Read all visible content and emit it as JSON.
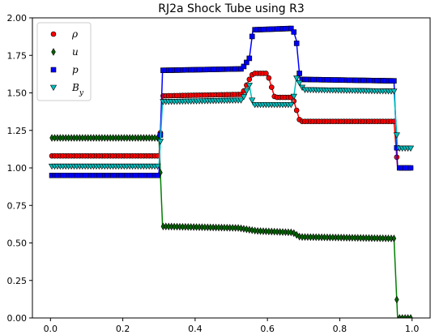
{
  "chart_data": {
    "type": "line",
    "title": "RJ2a Shock Tube using R3",
    "xlabel": "",
    "ylabel": "",
    "xlim": [
      -0.05,
      1.05
    ],
    "ylim": [
      0.0,
      2.0
    ],
    "x_ticks": [
      "0.0",
      "0.2",
      "0.4",
      "0.6",
      "0.8",
      "1.0"
    ],
    "y_ticks": [
      "0.00",
      "0.25",
      "0.50",
      "0.75",
      "1.00",
      "1.25",
      "1.50",
      "1.75",
      "2.00"
    ],
    "grid": false,
    "legend_position": "top-left",
    "series": [
      {
        "name": "ρ",
        "color": "#ff0000",
        "marker": "circle",
        "line_color": "#ff0000",
        "profile": [
          [
            0.0,
            1.08
          ],
          [
            0.3,
            1.08
          ],
          [
            0.31,
            1.48
          ],
          [
            0.53,
            1.49
          ],
          [
            0.55,
            1.59
          ],
          [
            0.56,
            1.63
          ],
          [
            0.6,
            1.63
          ],
          [
            0.62,
            1.47
          ],
          [
            0.67,
            1.47
          ],
          [
            0.69,
            1.31
          ],
          [
            0.95,
            1.31
          ],
          [
            0.96,
            1.0
          ],
          [
            1.0,
            1.0
          ]
        ]
      },
      {
        "name": "u",
        "color": "#006400",
        "marker": "thin_diamond",
        "line_color": "#008000",
        "profile": [
          [
            0.0,
            1.2
          ],
          [
            0.3,
            1.2
          ],
          [
            0.305,
            0.9
          ],
          [
            0.31,
            0.61
          ],
          [
            0.52,
            0.6
          ],
          [
            0.57,
            0.58
          ],
          [
            0.67,
            0.57
          ],
          [
            0.69,
            0.54
          ],
          [
            0.95,
            0.53
          ],
          [
            0.96,
            0.0
          ],
          [
            1.0,
            0.0
          ]
        ]
      },
      {
        "name": "p",
        "color": "#0000ff",
        "marker": "square",
        "line_color": "#0000ff",
        "profile": [
          [
            0.0,
            0.95
          ],
          [
            0.3,
            0.95
          ],
          [
            0.31,
            1.65
          ],
          [
            0.53,
            1.66
          ],
          [
            0.55,
            1.73
          ],
          [
            0.56,
            1.92
          ],
          [
            0.67,
            1.93
          ],
          [
            0.68,
            1.85
          ],
          [
            0.69,
            1.59
          ],
          [
            0.95,
            1.58
          ],
          [
            0.96,
            1.0
          ],
          [
            1.0,
            1.0
          ]
        ]
      },
      {
        "name": "B_y",
        "color": "#00bfbf",
        "marker": "triangle_down",
        "line_color": "#00bfbf",
        "profile": [
          [
            0.0,
            1.01
          ],
          [
            0.3,
            1.01
          ],
          [
            0.31,
            1.44
          ],
          [
            0.53,
            1.45
          ],
          [
            0.55,
            1.55
          ],
          [
            0.56,
            1.42
          ],
          [
            0.67,
            1.42
          ],
          [
            0.68,
            1.6
          ],
          [
            0.7,
            1.52
          ],
          [
            0.95,
            1.51
          ],
          [
            0.96,
            1.13
          ],
          [
            1.0,
            1.13
          ]
        ]
      }
    ]
  }
}
